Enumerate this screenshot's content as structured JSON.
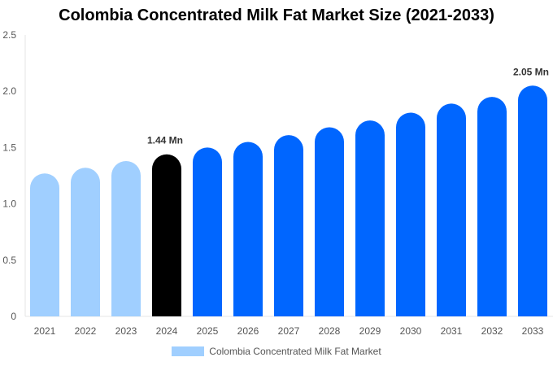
{
  "chart_data": {
    "type": "bar",
    "title": "Colombia Concentrated Milk Fat Market Size (2021-2033)",
    "categories": [
      "2021",
      "2022",
      "2023",
      "2024",
      "2025",
      "2026",
      "2027",
      "2028",
      "2029",
      "2030",
      "2031",
      "2032",
      "2033"
    ],
    "series": [
      {
        "name": "Colombia Concentrated Milk Fat Market",
        "values": [
          1.27,
          1.32,
          1.38,
          1.44,
          1.5,
          1.55,
          1.61,
          1.68,
          1.74,
          1.81,
          1.89,
          1.95,
          2.05
        ]
      }
    ],
    "data_labels": {
      "3": "1.44 Mn",
      "12": "2.05 Mn"
    },
    "ylim": [
      0,
      2.5
    ],
    "yticks": [
      "0",
      "0.5",
      "1.0",
      "1.5",
      "2.0",
      "2.5"
    ],
    "grid": false,
    "legend_position": "bottom",
    "colors": {
      "historical": "#a0cfff",
      "current": "#000000",
      "forecast": "#0066ff"
    }
  }
}
